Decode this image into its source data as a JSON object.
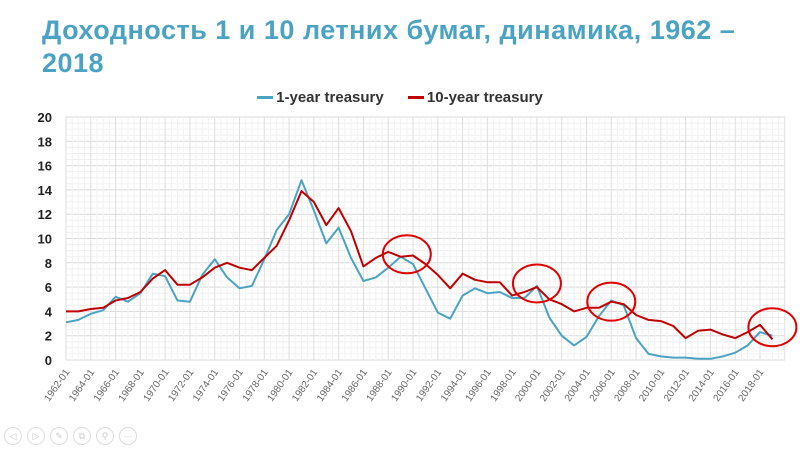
{
  "slide": {
    "title": "Доходность 1 и 10 летних бумаг, динамика, 1962 – 2018"
  },
  "controls": [
    {
      "name": "previous-icon",
      "glyph": "◁"
    },
    {
      "name": "next-icon",
      "glyph": "▷"
    },
    {
      "name": "pen-icon",
      "glyph": "✎"
    },
    {
      "name": "copy-icon",
      "glyph": "⧉"
    },
    {
      "name": "zoom-icon",
      "glyph": "⚲"
    },
    {
      "name": "more-icon",
      "glyph": "···"
    }
  ],
  "chart_data": {
    "type": "line",
    "title": "",
    "xlabel": "",
    "ylabel": "",
    "ylim": [
      0,
      20
    ],
    "yticks": [
      0,
      2,
      4,
      6,
      8,
      10,
      12,
      14,
      16,
      18,
      20
    ],
    "xlim": [
      1962,
      2020
    ],
    "xtick_labels": [
      "1962-01",
      "1964-01",
      "1966-01",
      "1968-01",
      "1970-01",
      "1972-01",
      "1974-01",
      "1976-01",
      "1978-01",
      "1980-01",
      "1982-01",
      "1984-01",
      "1986-01",
      "1988-01",
      "1990-01",
      "1992-01",
      "1994-01",
      "1996-01",
      "1998-01",
      "2000-01",
      "2002-01",
      "2004-01",
      "2006-01",
      "2008-01",
      "2010-01",
      "2012-01",
      "2014-01",
      "2016-01",
      "2018-01"
    ],
    "grid": true,
    "legend": "top-center",
    "x": [
      1962,
      1963,
      1964,
      1965,
      1966,
      1967,
      1968,
      1969,
      1970,
      1971,
      1972,
      1973,
      1974,
      1975,
      1976,
      1977,
      1978,
      1979,
      1980,
      1981,
      1982,
      1983,
      1984,
      1985,
      1986,
      1987,
      1988,
      1989,
      1990,
      1991,
      1992,
      1993,
      1994,
      1995,
      1996,
      1997,
      1998,
      1999,
      2000,
      2001,
      2002,
      2003,
      2004,
      2005,
      2006,
      2007,
      2008,
      2009,
      2010,
      2011,
      2012,
      2013,
      2014,
      2015,
      2016,
      2017,
      2018,
      2019
    ],
    "series": [
      {
        "name": "1-year treasury",
        "color": "#4ba3c3",
        "values": [
          3.1,
          3.3,
          3.8,
          4.1,
          5.2,
          4.8,
          5.5,
          7.1,
          6.9,
          4.9,
          4.8,
          7.0,
          8.3,
          6.8,
          5.9,
          6.1,
          8.3,
          10.7,
          12.0,
          14.8,
          12.3,
          9.6,
          10.9,
          8.4,
          6.5,
          6.8,
          7.6,
          8.5,
          7.9,
          5.9,
          3.9,
          3.4,
          5.3,
          5.9,
          5.5,
          5.6,
          5.1,
          5.1,
          6.1,
          3.5,
          2.0,
          1.2,
          1.9,
          3.6,
          4.9,
          4.5,
          1.8,
          0.5,
          0.3,
          0.2,
          0.2,
          0.1,
          0.1,
          0.3,
          0.6,
          1.2,
          2.3,
          2.0
        ]
      },
      {
        "name": "10-year treasury",
        "color": "#c00000",
        "values": [
          4.0,
          4.0,
          4.2,
          4.3,
          4.9,
          5.1,
          5.6,
          6.7,
          7.4,
          6.2,
          6.2,
          6.8,
          7.6,
          8.0,
          7.6,
          7.4,
          8.4,
          9.4,
          11.5,
          13.9,
          13.0,
          11.1,
          12.5,
          10.6,
          7.7,
          8.4,
          8.9,
          8.5,
          8.6,
          7.9,
          7.0,
          5.9,
          7.1,
          6.6,
          6.4,
          6.4,
          5.3,
          5.6,
          6.0,
          5.0,
          4.6,
          4.0,
          4.3,
          4.3,
          4.8,
          4.6,
          3.7,
          3.3,
          3.2,
          2.8,
          1.8,
          2.4,
          2.5,
          2.1,
          1.8,
          2.3,
          2.9,
          1.7
        ]
      }
    ],
    "annotations": [
      {
        "type": "circle",
        "x": 1989.5,
        "y": 8.7
      },
      {
        "type": "circle",
        "x": 2000,
        "y": 6.3
      },
      {
        "type": "circle",
        "x": 2006,
        "y": 4.8
      },
      {
        "type": "circle",
        "x": 2019,
        "y": 2.7
      }
    ]
  }
}
